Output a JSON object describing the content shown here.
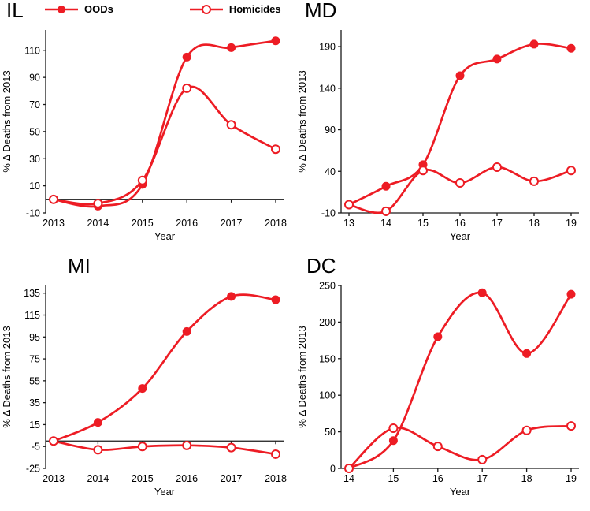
{
  "colors": {
    "accent": "#ed1c24",
    "axis": "#1a1a1a"
  },
  "legend": {
    "series": [
      {
        "label": "OODs",
        "marker": "filled-circle"
      },
      {
        "label": "Homicides",
        "marker": "open-circle"
      }
    ]
  },
  "chart_data": [
    {
      "type": "line",
      "title": "IL",
      "xlabel": "Year",
      "ylabel": "% Δ Deaths from 2013",
      "x_tick_labels": [
        "2013",
        "2014",
        "2015",
        "2016",
        "2017",
        "2018"
      ],
      "yticks": [
        -10,
        10,
        30,
        50,
        70,
        90,
        110
      ],
      "ylim": [
        -10,
        125
      ],
      "axis_cross_y": 0,
      "series": [
        {
          "name": "OODs",
          "marker": "filled-circle",
          "values": [
            0,
            -5,
            11,
            105,
            112,
            117
          ]
        },
        {
          "name": "Homicides",
          "marker": "open-circle",
          "values": [
            0,
            -3,
            14,
            82,
            55,
            37
          ]
        }
      ]
    },
    {
      "type": "line",
      "title": "MD",
      "xlabel": "Year",
      "ylabel": "% Δ Deaths from 2013",
      "x_tick_labels": [
        "13",
        "14",
        "15",
        "16",
        "17",
        "18",
        "19"
      ],
      "yticks": [
        -10,
        40,
        90,
        140,
        190
      ],
      "ylim": [
        -10,
        210
      ],
      "axis_cross_y": -10,
      "series": [
        {
          "name": "OODs",
          "marker": "filled-circle",
          "values": [
            0,
            22,
            48,
            155,
            175,
            193,
            188
          ]
        },
        {
          "name": "Homicides",
          "marker": "open-circle",
          "values": [
            0,
            -8,
            41,
            26,
            45,
            28,
            41
          ]
        }
      ]
    },
    {
      "type": "line",
      "title": "MI",
      "xlabel": "Year",
      "ylabel": "% Δ Deaths from 2013",
      "x_tick_labels": [
        "2013",
        "2014",
        "2015",
        "2016",
        "2017",
        "2018"
      ],
      "yticks": [
        -25,
        -5,
        15,
        35,
        55,
        75,
        95,
        115,
        135
      ],
      "ylim": [
        -25,
        142
      ],
      "axis_cross_y": 0,
      "series": [
        {
          "name": "OODs",
          "marker": "filled-circle",
          "values": [
            0,
            17,
            48,
            100,
            132,
            129
          ]
        },
        {
          "name": "Homicides",
          "marker": "open-circle",
          "values": [
            0,
            -8,
            -5,
            -4,
            -6,
            -12
          ]
        }
      ]
    },
    {
      "type": "line",
      "title": "DC",
      "xlabel": "Year",
      "ylabel": "% Δ Deaths from 2013",
      "x_tick_labels": [
        "14",
        "15",
        "16",
        "17",
        "18",
        "19"
      ],
      "yticks": [
        0,
        50,
        100,
        150,
        200,
        250
      ],
      "ylim": [
        0,
        250
      ],
      "axis_cross_y": 0,
      "series": [
        {
          "name": "OODs",
          "marker": "filled-circle",
          "values": [
            0,
            38,
            180,
            240,
            157,
            238
          ]
        },
        {
          "name": "Homicides",
          "marker": "open-circle",
          "values": [
            0,
            55,
            30,
            12,
            52,
            58
          ]
        }
      ]
    }
  ]
}
